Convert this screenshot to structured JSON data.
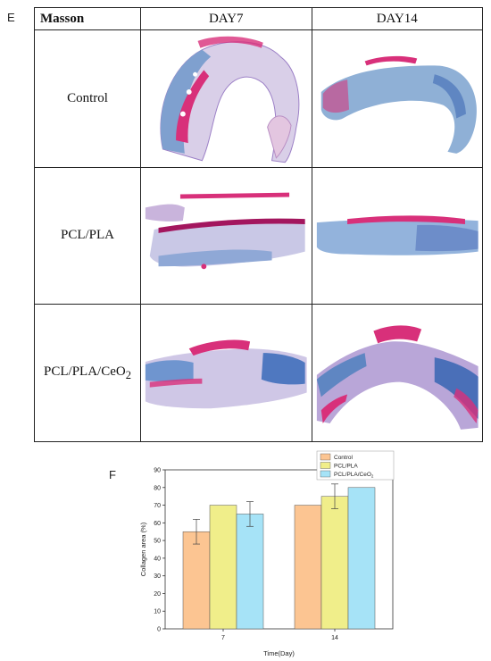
{
  "panel_e": {
    "letter": "E",
    "corner_label": "Masson",
    "columns": [
      "DAY7",
      "DAY14"
    ],
    "rows": [
      {
        "label": "Control"
      },
      {
        "label": "PCL/PLA"
      },
      {
        "label_main": "PCL/PLA/CeO",
        "label_sub": "2"
      }
    ]
  },
  "panel_f": {
    "letter": "F"
  },
  "colors": {
    "control": "#fcc592",
    "pcl_pla": "#f0ee8a",
    "pcl_pla_ceo2": "#a6e3f7",
    "stain_blue": "#7fa0cf",
    "stain_red": "#d8307a",
    "stain_pale": "#d9cfe8"
  },
  "chart_data": {
    "type": "bar",
    "categories": [
      "7",
      "14"
    ],
    "series": [
      {
        "name": "Control",
        "values": [
          55,
          70
        ],
        "errors": [
          7,
          null
        ]
      },
      {
        "name": "PCL/PLA",
        "values": [
          70,
          75
        ],
        "errors": [
          null,
          7
        ]
      },
      {
        "name_main": "PCL/PLA/CeO",
        "name_sub": "2",
        "values": [
          65,
          80
        ],
        "errors": [
          7,
          null
        ]
      }
    ],
    "xlabel": "Time(Day)",
    "ylabel": "Collagen area (%)",
    "ylim": [
      0,
      90
    ],
    "yticks": [
      0,
      10,
      20,
      30,
      40,
      50,
      60,
      70,
      80,
      90
    ],
    "legend_position": "top-right",
    "grid": false
  }
}
